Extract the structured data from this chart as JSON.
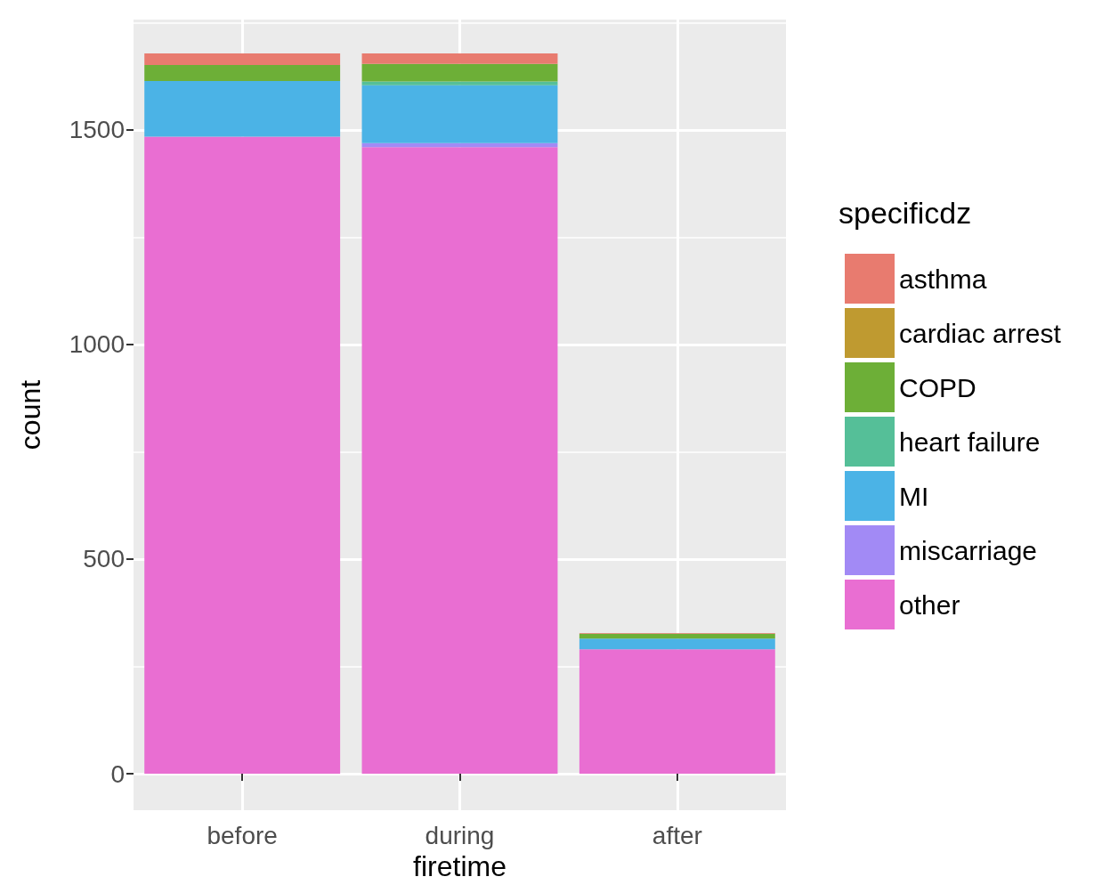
{
  "chart_data": {
    "type": "bar",
    "stacked": true,
    "xlabel": "firetime",
    "ylabel": "count",
    "legend_title": "specificdz",
    "categories": [
      "before",
      "during",
      "after"
    ],
    "series": [
      {
        "name": "other",
        "color": "#e96ed2",
        "values": [
          1484,
          1460,
          290
        ]
      },
      {
        "name": "miscarriage",
        "color": "#a28af5",
        "values": [
          0,
          9,
          0
        ]
      },
      {
        "name": "MI",
        "color": "#4bb3e6",
        "values": [
          130,
          135,
          25
        ]
      },
      {
        "name": "heart failure",
        "color": "#55bf98",
        "values": [
          0,
          9,
          0
        ]
      },
      {
        "name": "COPD",
        "color": "#6daf37",
        "values": [
          37,
          41,
          11
        ]
      },
      {
        "name": "cardiac arrest",
        "color": "#bf9a30",
        "values": [
          0,
          0,
          0
        ]
      },
      {
        "name": "asthma",
        "color": "#e87b6f",
        "values": [
          27,
          24,
          2
        ]
      }
    ],
    "ylim": [
      -85,
      1757
    ],
    "yticks": [
      0,
      500,
      1000,
      1500
    ],
    "grid": true,
    "legend": "right"
  }
}
